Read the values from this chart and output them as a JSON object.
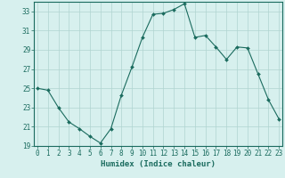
{
  "x": [
    0,
    1,
    2,
    3,
    4,
    5,
    6,
    7,
    8,
    9,
    10,
    11,
    12,
    13,
    14,
    15,
    16,
    17,
    18,
    19,
    20,
    21,
    22,
    23
  ],
  "y": [
    25,
    24.8,
    23,
    21.5,
    20.8,
    20,
    19.3,
    20.8,
    24.3,
    27.2,
    30.3,
    32.7,
    32.8,
    33.2,
    33.8,
    30.3,
    30.5,
    29.3,
    28.0,
    29.3,
    29.2,
    26.5,
    23.8,
    21.8
  ],
  "line_color": "#1a6b5e",
  "marker": "D",
  "marker_size": 2.0,
  "bg_color": "#d7f0ee",
  "grid_color": "#b0d4d0",
  "xlabel": "Humidex (Indice chaleur)",
  "ylim": [
    19,
    34
  ],
  "xlim": [
    -0.3,
    23.3
  ],
  "yticks": [
    19,
    21,
    23,
    25,
    27,
    29,
    31,
    33
  ],
  "xticks": [
    0,
    1,
    2,
    3,
    4,
    5,
    6,
    7,
    8,
    9,
    10,
    11,
    12,
    13,
    14,
    15,
    16,
    17,
    18,
    19,
    20,
    21,
    22,
    23
  ],
  "tick_color": "#1a6b5e",
  "label_fontsize": 5.5,
  "xlabel_fontsize": 6.5
}
